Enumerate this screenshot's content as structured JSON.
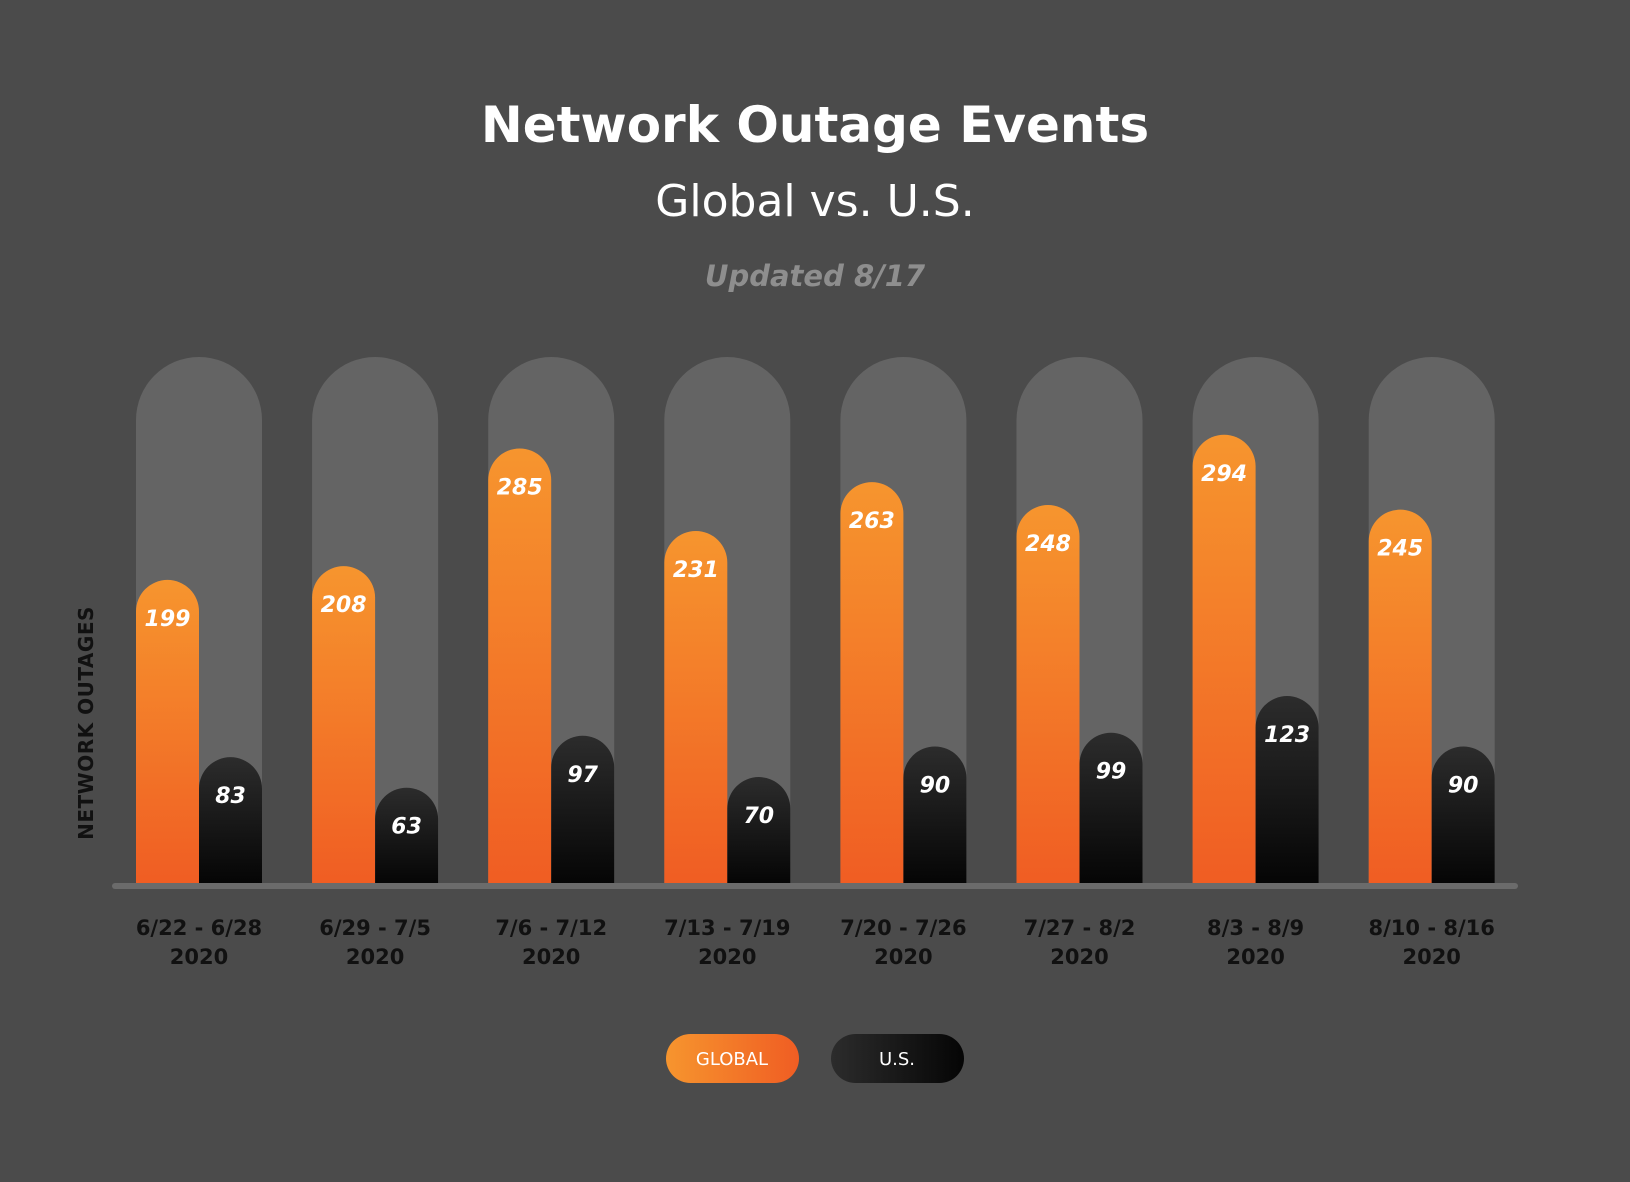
{
  "chart_data": {
    "type": "bar",
    "title": "Network Outage Events",
    "subtitle": "Global vs. U.S.",
    "note": "Updated 8/17",
    "ylabel": "NETWORK OUTAGES",
    "xlabel": "",
    "ylim": [
      0,
      350
    ],
    "grid": false,
    "legend_position": "bottom-center",
    "categories": [
      [
        "6/22 - 6/28",
        "2020"
      ],
      [
        "6/29 - 7/5",
        "2020"
      ],
      [
        "7/6 - 7/12",
        "2020"
      ],
      [
        "7/13 - 7/19",
        "2020"
      ],
      [
        "7/20 - 7/26",
        "2020"
      ],
      [
        "7/27 - 8/2",
        "2020"
      ],
      [
        "8/3 - 8/9",
        "2020"
      ],
      [
        "8/10 - 8/16",
        "2020"
      ]
    ],
    "series": [
      {
        "name": "GLOBAL",
        "values": [
          199,
          208,
          285,
          231,
          263,
          248,
          294,
          245
        ]
      },
      {
        "name": "U.S.",
        "values": [
          83,
          63,
          97,
          70,
          90,
          99,
          123,
          90
        ]
      }
    ]
  },
  "colors": {
    "background": "#4b4b4b",
    "track": "#646464",
    "baseline": "#6b6b6b",
    "global_top": "#f6952e",
    "global_bottom": "#f05d23",
    "us_top": "#2c2c2c",
    "us_bottom": "#050505",
    "text_light": "#ffffff",
    "text_dark": "#111111",
    "text_muted": "#8e8e8e"
  }
}
